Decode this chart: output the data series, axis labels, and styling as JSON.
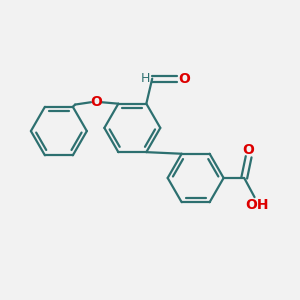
{
  "background_color": "#f2f2f2",
  "bond_color": "#2d7070",
  "heteroatom_color": "#dd0000",
  "figsize": [
    3.0,
    3.0
  ],
  "dpi": 100,
  "xlim": [
    0,
    10
  ],
  "ylim": [
    0,
    10
  ]
}
